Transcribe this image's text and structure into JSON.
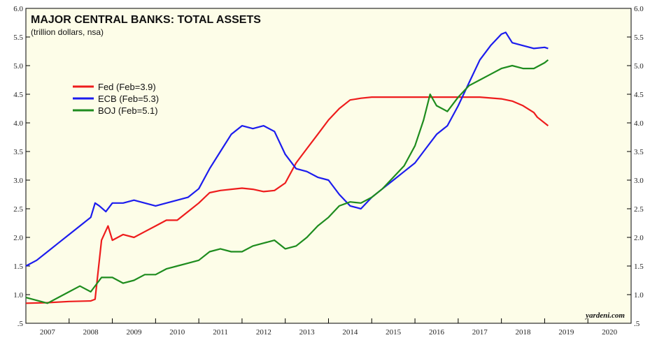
{
  "chart_data": {
    "type": "line",
    "title": "MAJOR CENTRAL BANKS: TOTAL ASSETS",
    "subtitle": "(trillion dollars, nsa)",
    "source": "yardeni.com",
    "background": "#fdfde8",
    "ylim": [
      0.5,
      6.0
    ],
    "y_ticks": [
      ".5",
      "1.0",
      "1.5",
      "2.0",
      "2.5",
      "3.0",
      "3.5",
      "4.0",
      "4.5",
      "5.0",
      "5.5",
      "6.0"
    ],
    "xlim": [
      2007,
      2021
    ],
    "x_ticks": [
      "2007",
      "2008",
      "2009",
      "2010",
      "2011",
      "2012",
      "2013",
      "2014",
      "2015",
      "2016",
      "2017",
      "2018",
      "2019",
      "2020"
    ],
    "grid": false,
    "legend_position": "top-left",
    "series": [
      {
        "name": "Fed (Feb=3.9)",
        "color": "#ee1c1c",
        "x": [
          2007.0,
          2007.5,
          2008.0,
          2008.5,
          2008.6,
          2008.75,
          2008.9,
          2009.0,
          2009.25,
          2009.5,
          2009.75,
          2010.0,
          2010.25,
          2010.5,
          2010.75,
          2011.0,
          2011.25,
          2011.5,
          2011.75,
          2012.0,
          2012.25,
          2012.5,
          2012.75,
          2013.0,
          2013.25,
          2013.5,
          2013.75,
          2014.0,
          2014.25,
          2014.5,
          2014.75,
          2015.0,
          2015.5,
          2016.0,
          2016.5,
          2017.0,
          2017.5,
          2018.0,
          2018.25,
          2018.5,
          2018.75,
          2018.83,
          2019.08
        ],
        "values": [
          0.85,
          0.86,
          0.88,
          0.89,
          0.92,
          1.95,
          2.2,
          1.95,
          2.05,
          2.0,
          2.1,
          2.2,
          2.3,
          2.3,
          2.45,
          2.6,
          2.78,
          2.82,
          2.84,
          2.86,
          2.84,
          2.8,
          2.82,
          2.95,
          3.3,
          3.55,
          3.8,
          4.05,
          4.25,
          4.4,
          4.43,
          4.45,
          4.45,
          4.45,
          4.45,
          4.45,
          4.45,
          4.42,
          4.38,
          4.3,
          4.18,
          4.1,
          3.95
        ]
      },
      {
        "name": "ECB (Feb=5.3)",
        "color": "#1c1cee",
        "x": [
          2007.0,
          2007.25,
          2007.5,
          2007.75,
          2008.0,
          2008.25,
          2008.5,
          2008.6,
          2008.7,
          2008.85,
          2009.0,
          2009.25,
          2009.5,
          2009.75,
          2010.0,
          2010.25,
          2010.5,
          2010.75,
          2011.0,
          2011.25,
          2011.5,
          2011.75,
          2012.0,
          2012.25,
          2012.5,
          2012.75,
          2013.0,
          2013.25,
          2013.5,
          2013.75,
          2014.0,
          2014.25,
          2014.5,
          2014.75,
          2015.0,
          2015.25,
          2015.5,
          2015.75,
          2016.0,
          2016.25,
          2016.5,
          2016.75,
          2017.0,
          2017.25,
          2017.5,
          2017.75,
          2018.0,
          2018.1,
          2018.25,
          2018.5,
          2018.75,
          2019.0,
          2019.08
        ],
        "values": [
          1.5,
          1.6,
          1.75,
          1.9,
          2.05,
          2.2,
          2.35,
          2.6,
          2.55,
          2.45,
          2.6,
          2.6,
          2.65,
          2.6,
          2.55,
          2.6,
          2.65,
          2.7,
          2.85,
          3.2,
          3.5,
          3.8,
          3.95,
          3.9,
          3.95,
          3.85,
          3.45,
          3.2,
          3.15,
          3.05,
          3.0,
          2.75,
          2.55,
          2.5,
          2.7,
          2.85,
          3.0,
          3.15,
          3.3,
          3.55,
          3.8,
          3.95,
          4.3,
          4.7,
          5.1,
          5.35,
          5.55,
          5.58,
          5.4,
          5.35,
          5.3,
          5.32,
          5.3
        ]
      },
      {
        "name": "BOJ (Feb=5.1)",
        "color": "#1e8c1e",
        "x": [
          2007.0,
          2007.25,
          2007.5,
          2007.75,
          2008.0,
          2008.25,
          2008.5,
          2008.75,
          2009.0,
          2009.25,
          2009.5,
          2009.75,
          2010.0,
          2010.25,
          2010.5,
          2010.75,
          2011.0,
          2011.25,
          2011.5,
          2011.75,
          2012.0,
          2012.25,
          2012.5,
          2012.75,
          2013.0,
          2013.25,
          2013.5,
          2013.75,
          2014.0,
          2014.25,
          2014.5,
          2014.75,
          2015.0,
          2015.25,
          2015.5,
          2015.75,
          2016.0,
          2016.2,
          2016.35,
          2016.5,
          2016.75,
          2017.0,
          2017.25,
          2017.5,
          2017.75,
          2018.0,
          2018.25,
          2018.5,
          2018.75,
          2019.0,
          2019.08
        ],
        "values": [
          0.95,
          0.9,
          0.85,
          0.95,
          1.05,
          1.15,
          1.05,
          1.3,
          1.3,
          1.2,
          1.25,
          1.35,
          1.35,
          1.45,
          1.5,
          1.55,
          1.6,
          1.75,
          1.8,
          1.75,
          1.75,
          1.85,
          1.9,
          1.95,
          1.8,
          1.85,
          2.0,
          2.2,
          2.35,
          2.55,
          2.62,
          2.6,
          2.7,
          2.85,
          3.05,
          3.25,
          3.6,
          4.05,
          4.5,
          4.3,
          4.2,
          4.45,
          4.65,
          4.75,
          4.85,
          4.95,
          5.0,
          4.95,
          4.95,
          5.05,
          5.1
        ]
      }
    ]
  }
}
